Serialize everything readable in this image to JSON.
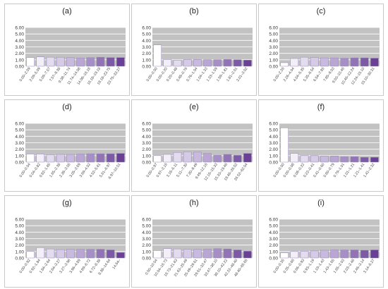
{
  "chart_data": [
    {
      "type": "bar",
      "title": "(a)",
      "ylim": [
        0,
        6
      ],
      "yticks": [
        "0.00",
        "1.00",
        "2.00",
        "3.00",
        "4.00",
        "5.00",
        "6.00"
      ],
      "categories": [
        "0.00–2.09",
        "2.09–5.09",
        "5.09–7.57",
        "7.57–9.38",
        "9.38–11.74",
        "11.74–14.08",
        "14.08–16.18",
        "16.18–19.18",
        "19.18–23.75",
        "23.75–33.27"
      ],
      "values": [
        1.35,
        1.45,
        1.4,
        1.4,
        1.35,
        1.3,
        1.35,
        1.4,
        1.35,
        1.35
      ]
    },
    {
      "type": "bar",
      "title": "(b)",
      "ylim": [
        0,
        6
      ],
      "yticks": [
        "0.00",
        "1.00",
        "2.00",
        "3.00",
        "4.00",
        "5.00",
        "6.00"
      ],
      "categories": [
        "0.00–0.00",
        "0.00–0.20",
        "0.20–0.48",
        "0.48–0.76",
        "0.76–1.04",
        "1.04–1.33",
        "1.33–1.59",
        "1.59–1.81",
        "1.81–2.01",
        "2.01–3.02"
      ],
      "values": [
        3.3,
        1.05,
        0.95,
        1.05,
        1.05,
        1.0,
        1.0,
        1.05,
        1.0,
        0.95
      ]
    },
    {
      "type": "bar",
      "title": "(c)",
      "ylim": [
        0,
        6
      ],
      "yticks": [
        "0.00",
        "1.00",
        "2.00",
        "3.00",
        "4.00",
        "5.00",
        "6.00"
      ],
      "categories": [
        "0.00–2.26",
        "2.26–4.04",
        "4.04–5.35",
        "5.35–6.54",
        "6.54–7.85",
        "7.85–9.03",
        "9.03–10.46",
        "10.46–12.24",
        "12.24–15.10",
        "15.10–30.31"
      ],
      "values": [
        0.55,
        1.2,
        1.4,
        1.35,
        1.3,
        1.3,
        1.25,
        1.3,
        1.3,
        1.25
      ]
    },
    {
      "type": "bar",
      "title": "(d)",
      "ylim": [
        0,
        6
      ],
      "yticks": [
        "0.00",
        "1.00",
        "2.00",
        "3.00",
        "4.00",
        "5.00",
        "6.00"
      ],
      "categories": [
        "0.00–0.04",
        "0.04–0.82",
        "0.82–1.65",
        "1.65–2.38",
        "2.38–3.05",
        "3.05–3.69",
        "3.69–4.52",
        "4.52–5.61",
        "5.61–6.97",
        "6.97–10.51"
      ],
      "values": [
        1.25,
        1.25,
        1.15,
        1.2,
        1.2,
        1.25,
        1.3,
        1.3,
        1.3,
        1.35
      ]
    },
    {
      "type": "bar",
      "title": "(e)",
      "ylim": [
        0,
        6
      ],
      "yticks": [
        "0.00",
        "1.00",
        "2.00",
        "3.00",
        "4.00",
        "5.00",
        "6.00"
      ],
      "categories": [
        "0.00–0.97",
        "0.97–3.16",
        "3.16–5.11",
        "5.11–7.30",
        "7.30–9.49",
        "9.49–12.16",
        "12.16–15.33",
        "15.33–19.46",
        "19.46–26.52",
        "26.52–62.04"
      ],
      "values": [
        1.0,
        1.2,
        1.5,
        1.6,
        1.55,
        1.35,
        1.05,
        1.2,
        1.05,
        1.35
      ]
    },
    {
      "type": "bar",
      "title": "(f)",
      "ylim": [
        0,
        6
      ],
      "yticks": [
        "0.00",
        "1.00",
        "2.00",
        "3.00",
        "4.00",
        "5.00",
        "6.00"
      ],
      "categories": [
        "0.00–0.00",
        "0.00–0.08",
        "0.08–0.22",
        "0.22–0.41",
        "0.41–0.60",
        "0.60–0.79",
        "0.79–1.01",
        "1.01–1.21",
        "1.21–1.41",
        "1.41–2.32"
      ],
      "values": [
        5.3,
        1.35,
        1.0,
        1.0,
        0.95,
        0.95,
        0.85,
        0.85,
        0.75,
        0.75
      ]
    },
    {
      "type": "bar",
      "title": "(g)",
      "ylim": [
        0,
        6
      ],
      "yticks": [
        "0.00",
        "1.00",
        "2.00",
        "3.00",
        "4.00",
        "5.00",
        "6.00"
      ],
      "categories": [
        "0.00–0.92",
        "0.92–1.84",
        "1.84–2.64",
        "2.64–3.27",
        "3.27–3.96",
        "3.96–4.89",
        "4.89–6.72",
        "6.72–8.38",
        "8.38–14.64",
        "14.64–"
      ],
      "values": [
        1.0,
        1.6,
        1.4,
        1.3,
        1.35,
        1.35,
        1.35,
        1.35,
        1.25,
        0.85
      ]
    },
    {
      "type": "bar",
      "title": "(h)",
      "ylim": [
        0,
        6
      ],
      "yticks": [
        "0.00",
        "1.00",
        "2.00",
        "3.00",
        "4.00",
        "5.00",
        "6.00"
      ],
      "categories": [
        "0.00–10.04",
        "10.04–16.73",
        "16.73–21.63",
        "21.63–25.49",
        "25.49–29.61",
        "29.61–33.47",
        "33.47–38.10",
        "38.10–42.22",
        "42.22–48.40",
        "48.40–65.65"
      ],
      "values": [
        1.15,
        1.45,
        1.4,
        1.35,
        1.35,
        1.4,
        1.45,
        1.4,
        1.25,
        1.05
      ]
    },
    {
      "type": "bar",
      "title": "(i)",
      "ylim": [
        0,
        6
      ],
      "yticks": [
        "0.00",
        "1.00",
        "2.00",
        "3.00",
        "4.00",
        "5.00",
        "6.00"
      ],
      "categories": [
        "0.00–0.35",
        "0.35–0.66",
        "0.66–0.93",
        "0.93–1.19",
        "1.19–1.43",
        "1.43–1.65",
        "1.65–2.03",
        "2.03–2.46",
        "2.46–3.14",
        "3.14–5.27"
      ],
      "values": [
        0.8,
        1.0,
        1.05,
        1.1,
        1.2,
        1.25,
        1.25,
        1.25,
        1.2,
        1.25
      ]
    }
  ],
  "colors": {
    "plot_bg": "#c2c2c2",
    "bar_outline": "#9b86bd",
    "bars": [
      "#ffffff",
      "#f3eff8",
      "#e3dbee",
      "#d6cbe7",
      "#c8b9de",
      "#b9a6d4",
      "#a68fc6",
      "#9274b6",
      "#7d5aa5",
      "#6a3f96"
    ]
  }
}
